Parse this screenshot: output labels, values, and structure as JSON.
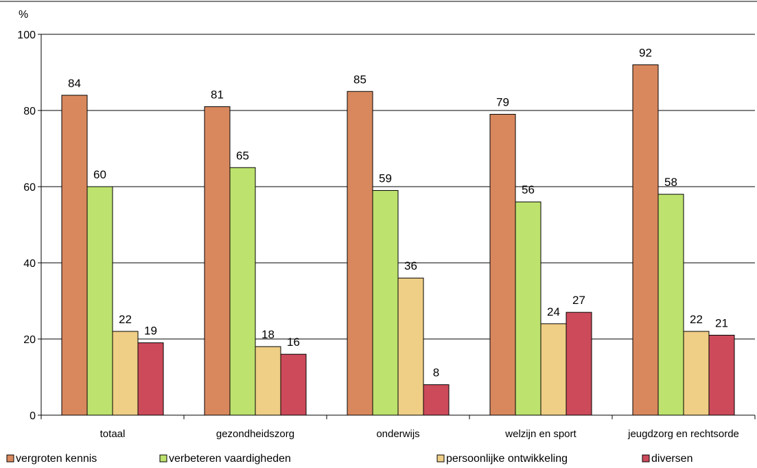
{
  "chart_data": {
    "type": "bar",
    "ylabel": "%",
    "ylim": [
      0,
      100
    ],
    "yticks": [
      0,
      20,
      40,
      60,
      80,
      100
    ],
    "grid": true,
    "legend_position": "bottom",
    "categories": [
      "totaal",
      "gezondheidszorg",
      "onderwijs",
      "welzijn en sport",
      "jeugdzorg en rechtsorde"
    ],
    "series": [
      {
        "name": "vergroten kennis",
        "color": "#d9885e",
        "values": [
          84,
          81,
          85,
          79,
          92
        ]
      },
      {
        "name": "verbeteren vaardigheden",
        "color": "#bde26e",
        "values": [
          60,
          65,
          59,
          56,
          58
        ]
      },
      {
        "name": "persoonlijke ontwikkeling",
        "color": "#efce85",
        "values": [
          22,
          18,
          36,
          24,
          22
        ]
      },
      {
        "name": "diversen",
        "color": "#cc4a5a",
        "values": [
          19,
          16,
          8,
          27,
          21
        ]
      }
    ]
  }
}
